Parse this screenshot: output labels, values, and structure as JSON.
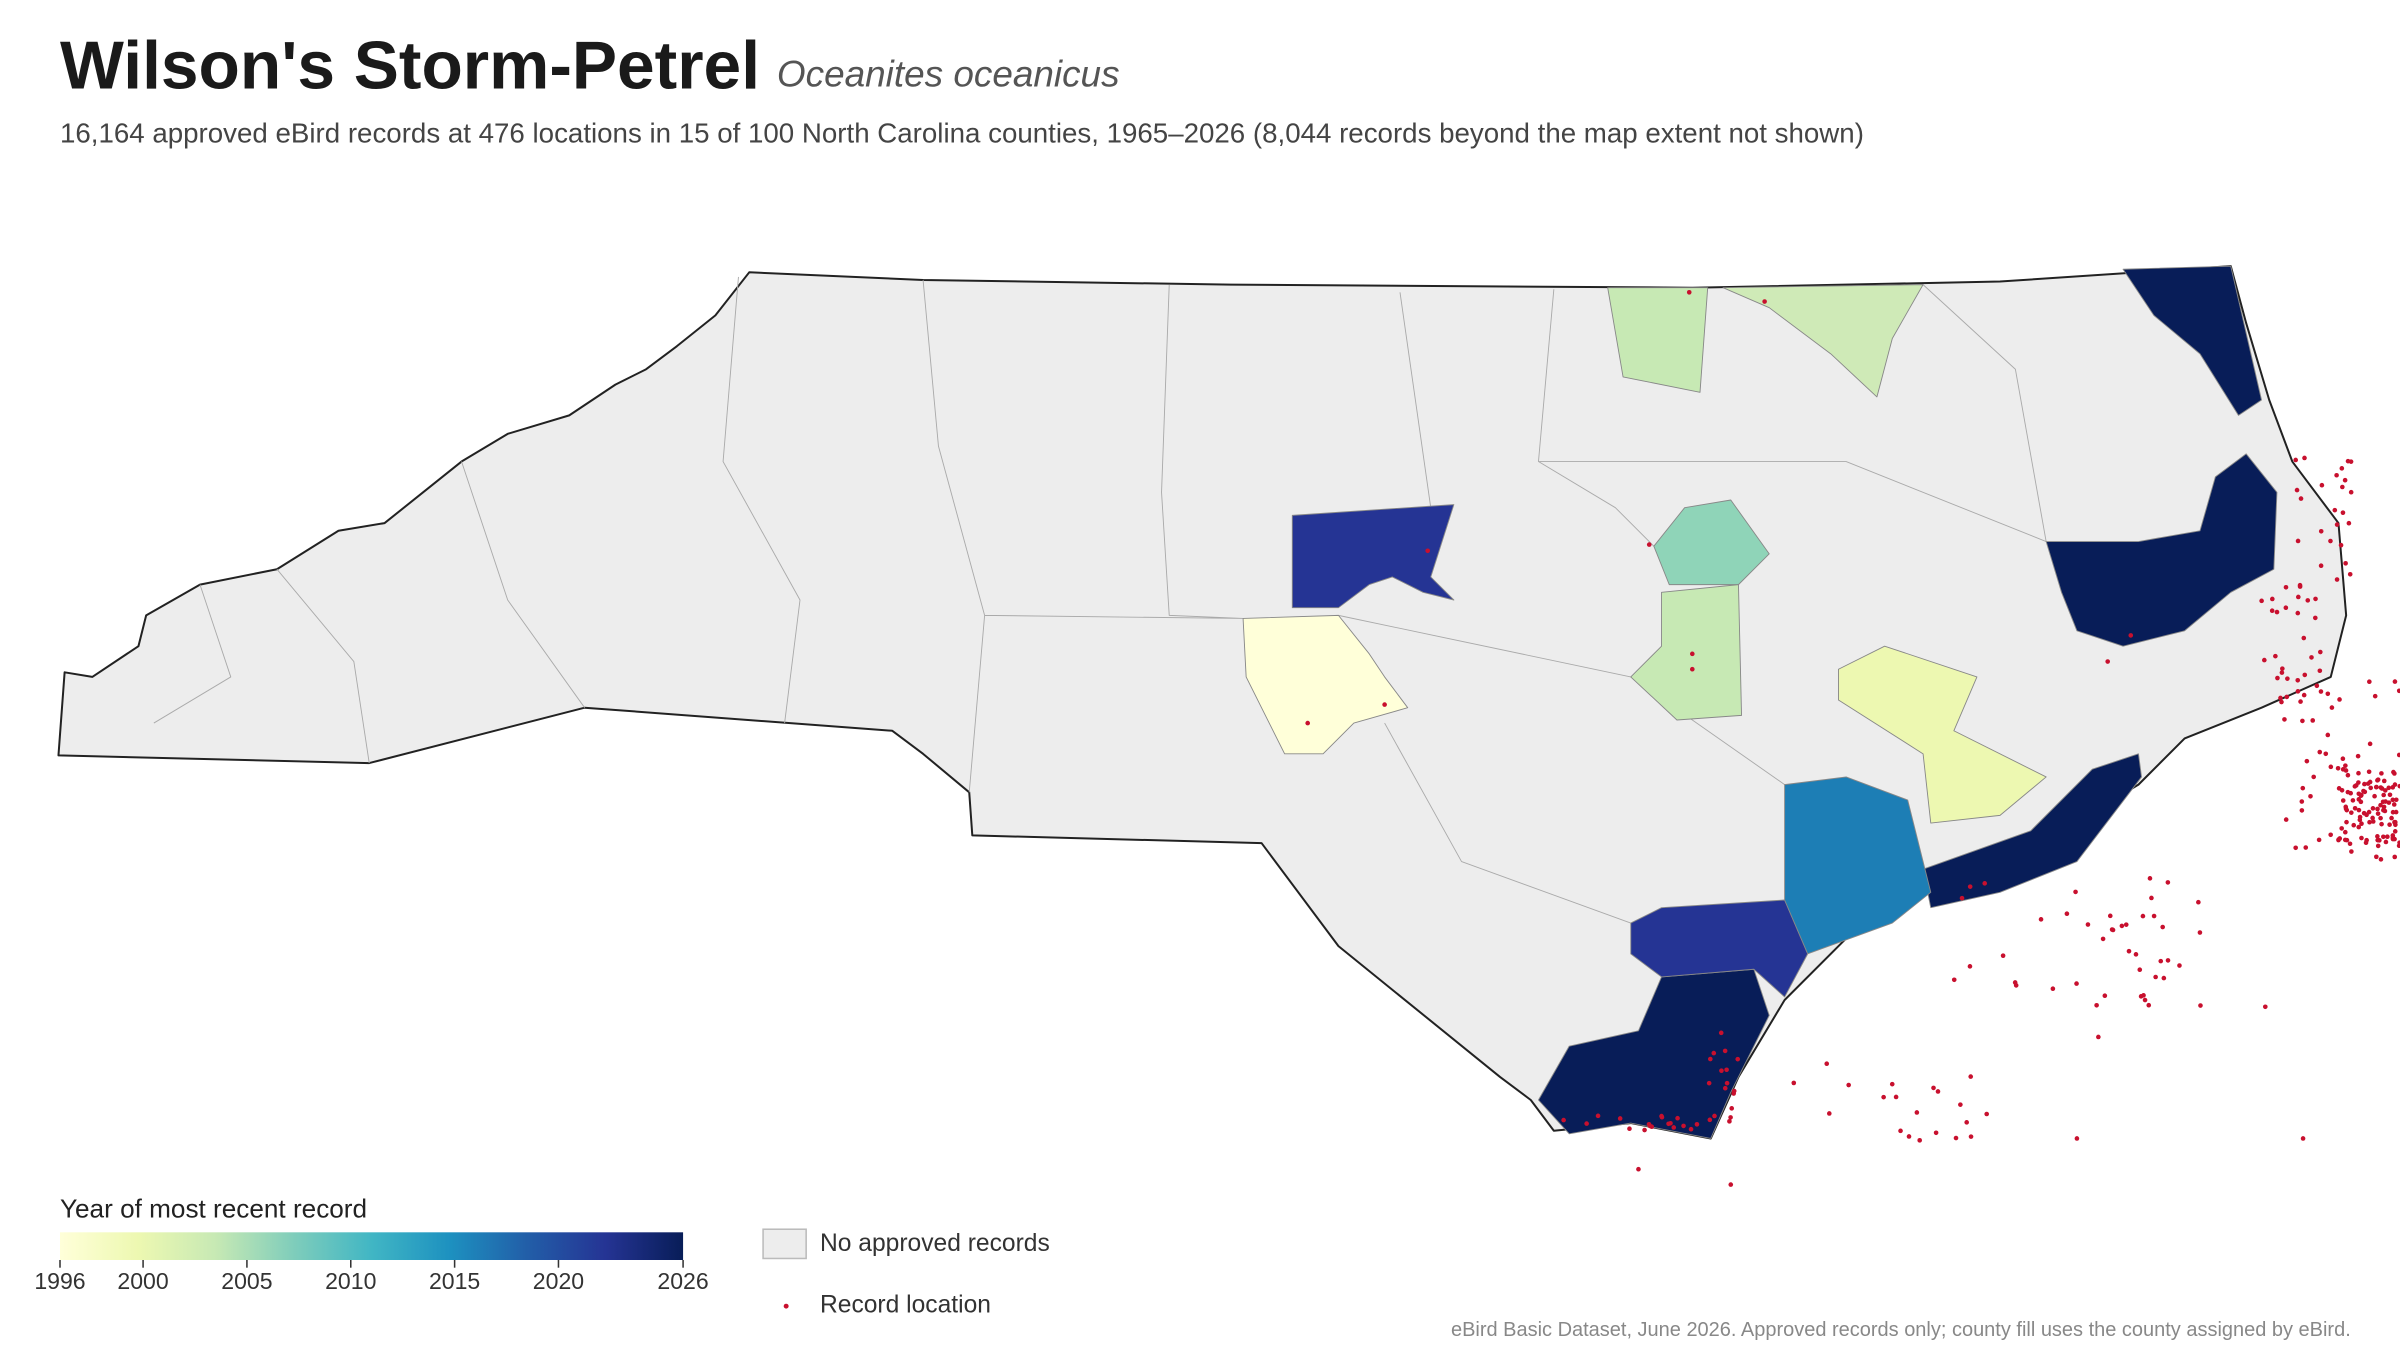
{
  "header": {
    "title": "Wilson's Storm-Petrel",
    "scientific_name": "Oceanites oceanicus",
    "subtitle": "16,164 approved eBird records at 476 locations in 15 of 100 North Carolina counties, 1965–2026 (8,044 records beyond the map extent not shown)"
  },
  "legend": {
    "colorbar": {
      "title": "Year of most recent record",
      "lim": [
        1996,
        2026
      ],
      "ticks": [
        1996,
        2000,
        2005,
        2010,
        2015,
        2020,
        2026
      ],
      "colors": [
        "#ffffd9",
        "#edf8b1",
        "#c7e9b4",
        "#7fcdbb",
        "#41b6c4",
        "#1d91c0",
        "#225ea8",
        "#253494",
        "#081d58"
      ]
    },
    "no_records": "No approved records",
    "record_location": "Record location"
  },
  "footer": "eBird Basic Dataset, June 2026. Approved records only; county fill uses the county assigned by eBird."
}
